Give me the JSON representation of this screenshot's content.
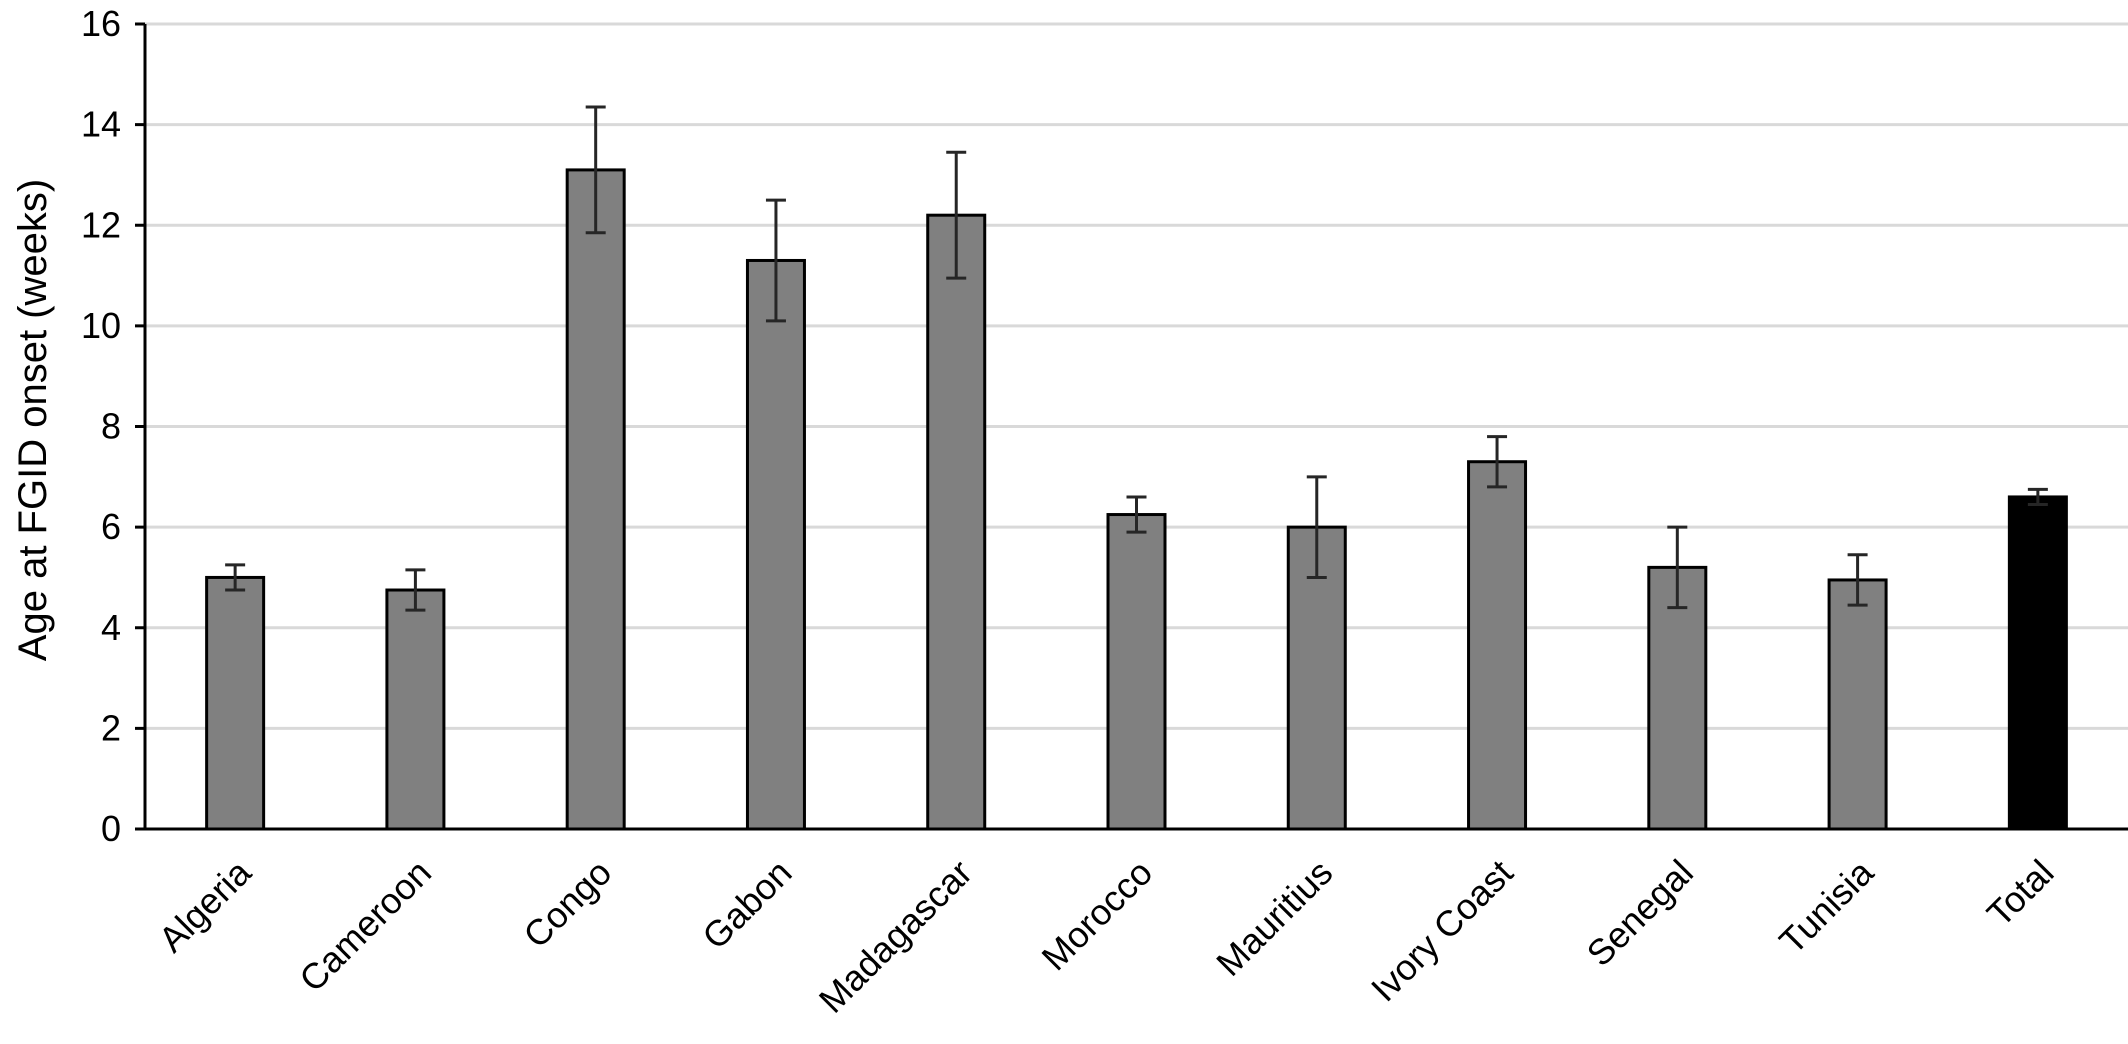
{
  "chart_data": {
    "type": "bar",
    "title": "",
    "xlabel": "",
    "ylabel": "Age at FGID onset (weeks)",
    "ylim": [
      0,
      16
    ],
    "yticks": [
      0,
      2,
      4,
      6,
      8,
      10,
      12,
      14,
      16
    ],
    "grid": true,
    "categories": [
      "Algeria",
      "Cameroon",
      "Congo",
      "Gabon",
      "Madagascar",
      "Morocco",
      "Mauritius",
      "Ivory Coast",
      "Senegal",
      "Tunisia",
      "Total"
    ],
    "values": [
      5.0,
      4.75,
      13.1,
      11.3,
      12.2,
      6.25,
      6.0,
      7.3,
      5.2,
      4.95,
      6.6
    ],
    "error_low": [
      0.25,
      0.4,
      1.25,
      1.2,
      1.25,
      0.35,
      1.0,
      0.5,
      0.8,
      0.5,
      0.15
    ],
    "error_high": [
      0.25,
      0.4,
      1.25,
      1.2,
      1.25,
      0.35,
      1.0,
      0.5,
      0.8,
      0.5,
      0.15
    ],
    "bar_colors": [
      "#808080",
      "#808080",
      "#808080",
      "#808080",
      "#808080",
      "#808080",
      "#808080",
      "#808080",
      "#808080",
      "#808080",
      "#000000"
    ]
  }
}
